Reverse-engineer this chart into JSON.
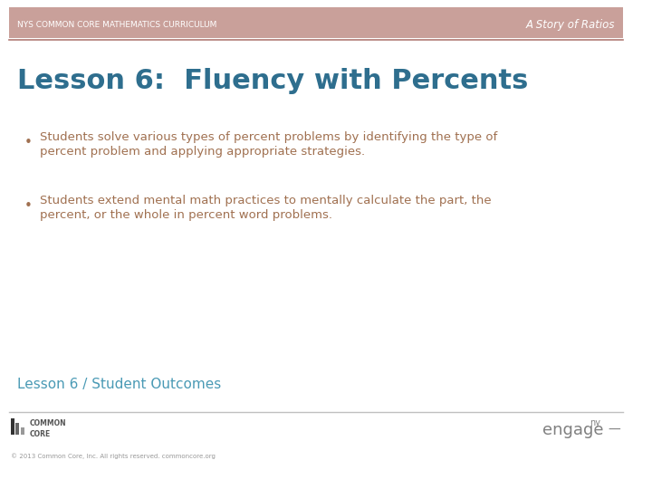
{
  "bg_color": "#ffffff",
  "header_bg_color": "#c9a09a",
  "header_text_left": "NYS COMMON CORE MATHEMATICS CURRICULUM",
  "header_text_right": "A Story of Ratios",
  "header_text_color": "#ffffff",
  "header_line_color": "#b07a74",
  "title": "Lesson 6:  Fluency with Percents",
  "title_color": "#2e6e8e",
  "bullet1_line1": "Students solve various types of percent problems by identifying the type of",
  "bullet1_line2": "percent problem and applying appropriate strategies.",
  "bullet2_line1": "Students extend mental math practices to mentally calculate the part, the",
  "bullet2_line2": "percent, or the whole in percent word problems.",
  "bullet_color": "#a07050",
  "section_title": "Lesson 6 / Student Outcomes",
  "section_title_color": "#4a9ab5",
  "footer_line_color": "#c0c0c0",
  "footer_logo_text": "COMMON\nCORE",
  "footer_engage_text": "engage",
  "footer_engage_sup": "ny",
  "footer_dash": "—",
  "footer_text_color": "#808080",
  "copyright_text": "© 2013 Common Core, Inc. All rights reserved. commoncore.org"
}
